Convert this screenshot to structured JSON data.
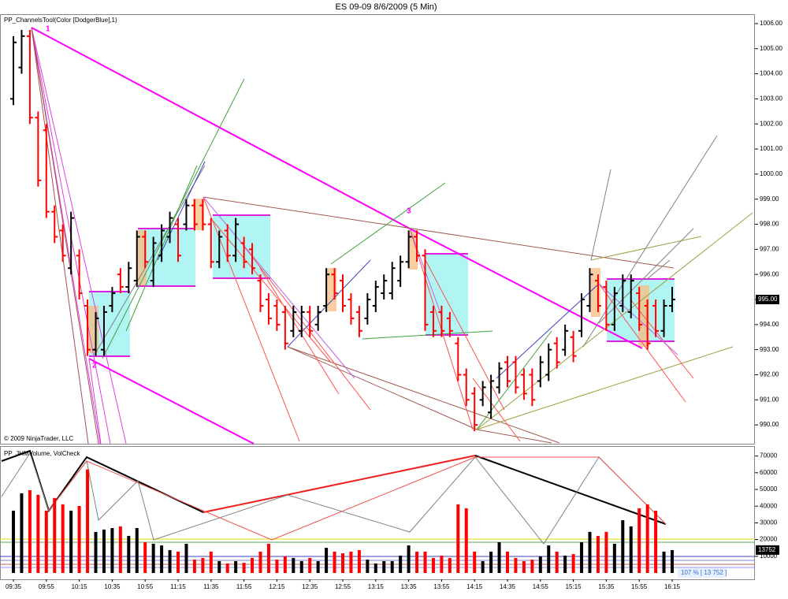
{
  "chart_data": [
    {
      "type": "ohlc",
      "title": "ES 09-09  8/6/2009 (5 Min)",
      "indicator_label": "PP_ChannelsTool(Color [DodgerBlue],1)",
      "copyright": "© 2009 NinjaTrader, LLC",
      "pivot_labels": [
        "1",
        "2",
        "3"
      ],
      "colors": {
        "up": "#000000",
        "down": "#ff0000"
      },
      "ylim": [
        989.25,
        1006.375
      ],
      "yticks": [
        {
          "value": 990,
          "label": "990.00"
        },
        {
          "value": 991,
          "label": "991.00"
        },
        {
          "value": 992,
          "label": "992.00"
        },
        {
          "value": 993,
          "label": "993.00"
        },
        {
          "value": 994,
          "label": "994.00"
        },
        {
          "value": 995,
          "label": "995.00"
        },
        {
          "value": 996,
          "label": "996.00"
        },
        {
          "value": 997,
          "label": "997.00"
        },
        {
          "value": 998,
          "label": "998.00"
        },
        {
          "value": 999,
          "label": "999.00"
        },
        {
          "value": 1000,
          "label": "1000.00"
        },
        {
          "value": 1001,
          "label": "1001.00"
        },
        {
          "value": 1002,
          "label": "1002.00"
        },
        {
          "value": 1003,
          "label": "1003.00"
        },
        {
          "value": 1004,
          "label": "1004.00"
        },
        {
          "value": 1005,
          "label": "1005.00"
        },
        {
          "value": 1006,
          "label": "1006.00"
        }
      ],
      "last_value": {
        "value": 995,
        "label": "995.00"
      },
      "open": [
        1003.0,
        1004.25,
        1005.5,
        1002.25,
        1001.75,
        998.5,
        997.75,
        996.25,
        996.75,
        994.75,
        993.0,
        993.0,
        994.75,
        996.0,
        995.5,
        995.75,
        997.5,
        995.75,
        996.75,
        997.5,
        998.0,
        998.0,
        998.75,
        998.75,
        998.0,
        996.5,
        997.75,
        996.75,
        997.25,
        997.0,
        995.75,
        995.0,
        994.75,
        994.5,
        993.75,
        993.75,
        994.5,
        994.0,
        994.75,
        996.0,
        995.75,
        995.0,
        994.5,
        994.25,
        994.75,
        995.25,
        995.25,
        995.75,
        996.5,
        997.5,
        996.75,
        994.5,
        994.5,
        994.25,
        993.25,
        992.0,
        991.25,
        991.0,
        990.5,
        991.5,
        992.5,
        992.5,
        992.0,
        992.0,
        991.75,
        992.0,
        993.25,
        993.0,
        993.5,
        993.75,
        994.75,
        995.75,
        995.5,
        994.0,
        994.75,
        994.5,
        995.25,
        994.75,
        994.75,
        993.75,
        994.75
      ],
      "high": [
        1005.5,
        1005.75,
        1005.75,
        1002.5,
        1002.0,
        998.75,
        998.0,
        998.5,
        997.0,
        995.0,
        994.5,
        994.75,
        995.5,
        996.25,
        996.5,
        997.75,
        997.75,
        997.5,
        998.0,
        998.5,
        998.25,
        999.0,
        999.0,
        999.0,
        998.25,
        997.75,
        998.0,
        998.25,
        997.5,
        997.25,
        996.0,
        995.25,
        995.0,
        994.75,
        994.75,
        994.75,
        994.75,
        994.75,
        996.25,
        996.25,
        996.0,
        995.25,
        994.75,
        995.25,
        995.75,
        996.0,
        996.5,
        996.75,
        997.75,
        997.75,
        997.0,
        994.75,
        994.75,
        994.5,
        993.5,
        992.25,
        991.5,
        991.75,
        992.0,
        992.5,
        992.75,
        992.75,
        992.25,
        992.25,
        992.75,
        993.25,
        993.5,
        994.0,
        993.75,
        995.25,
        996.25,
        996.0,
        995.75,
        995.5,
        996.0,
        996.0,
        995.5,
        995.0,
        995.0,
        995.0,
        995.5
      ],
      "low": [
        1002.75,
        1004.0,
        1002.0,
        999.5,
        998.25,
        997.25,
        996.5,
        996.0,
        995.0,
        992.75,
        992.75,
        992.75,
        994.5,
        995.25,
        995.25,
        995.5,
        996.25,
        995.5,
        996.5,
        997.25,
        996.5,
        997.75,
        997.75,
        997.75,
        996.25,
        996.25,
        996.5,
        996.5,
        996.25,
        996.0,
        994.5,
        994.0,
        993.75,
        993.0,
        993.5,
        993.5,
        993.5,
        993.75,
        994.5,
        995.0,
        994.5,
        994.0,
        993.5,
        994.0,
        994.5,
        995.0,
        995.0,
        995.5,
        996.25,
        996.5,
        993.75,
        993.5,
        993.5,
        993.5,
        991.75,
        990.75,
        989.75,
        990.75,
        990.25,
        991.25,
        991.5,
        991.25,
        991.0,
        990.75,
        991.5,
        991.75,
        992.25,
        992.75,
        992.5,
        993.5,
        994.5,
        994.5,
        993.75,
        993.75,
        994.5,
        994.25,
        993.75,
        993.0,
        993.5,
        993.5,
        994.5
      ],
      "close": [
        1005.25,
        1005.5,
        1002.25,
        999.75,
        998.5,
        997.5,
        996.75,
        998.25,
        995.25,
        993.0,
        994.25,
        994.5,
        995.25,
        995.5,
        996.25,
        997.5,
        996.5,
        997.25,
        997.75,
        998.25,
        996.75,
        998.75,
        998.0,
        998.0,
        996.5,
        997.5,
        996.75,
        998.0,
        996.5,
        996.25,
        994.75,
        994.25,
        994.0,
        993.25,
        994.5,
        994.5,
        993.75,
        994.5,
        996.0,
        995.25,
        994.75,
        994.25,
        993.75,
        995.0,
        995.5,
        995.75,
        996.25,
        996.5,
        997.5,
        996.75,
        994.0,
        993.75,
        993.75,
        993.75,
        992.0,
        991.0,
        990.0,
        991.5,
        991.75,
        992.25,
        991.75,
        991.5,
        991.25,
        991.0,
        992.5,
        993.0,
        992.5,
        993.75,
        992.75,
        995.0,
        996.0,
        994.75,
        994.0,
        995.25,
        995.75,
        995.75,
        994.0,
        993.25,
        993.75,
        994.75,
        995.0
      ]
    },
    {
      "type": "bar",
      "indicator_label": "PP_JHMVolume, VolCheck",
      "colors": {
        "up": "#000000",
        "down": "#ff0000"
      },
      "note": "107 % [ 13 752 ]",
      "last_value": 13752,
      "ylim": [
        0,
        75000
      ],
      "yticks": [
        10000,
        20000,
        30000,
        40000,
        50000,
        60000,
        70000
      ],
      "categories": [
        "09:35",
        null,
        null,
        null,
        "09:55",
        null,
        null,
        null,
        "10:15",
        null,
        null,
        null,
        "10:35",
        null,
        null,
        null,
        "10:55",
        null,
        null,
        null,
        "11:15",
        null,
        null,
        null,
        "11:35",
        null,
        null,
        null,
        "11:55",
        null,
        null,
        null,
        "12:15",
        null,
        null,
        null,
        "12:35",
        null,
        null,
        null,
        "12:55",
        null,
        null,
        null,
        "13:15",
        null,
        null,
        null,
        "13:35",
        null,
        null,
        null,
        "13:55",
        null,
        null,
        null,
        "14:15",
        null,
        null,
        null,
        "14:35",
        null,
        null,
        null,
        "14:55",
        null,
        null,
        null,
        "15:15",
        null,
        null,
        null,
        "15:35",
        null,
        null,
        null,
        "15:55",
        null,
        null,
        null,
        "16:15"
      ],
      "values": [
        37300,
        47700,
        49600,
        46800,
        37300,
        44900,
        41100,
        37300,
        40100,
        62000,
        24600,
        26000,
        26900,
        27900,
        22200,
        26900,
        18400,
        17500,
        16500,
        13700,
        12800,
        17500,
        8000,
        9000,
        12800,
        7100,
        5700,
        7100,
        6100,
        9000,
        12800,
        17500,
        8000,
        9900,
        9000,
        7100,
        9000,
        7100,
        15100,
        12800,
        11800,
        12800,
        13700,
        8000,
        5700,
        7100,
        7100,
        10400,
        16500,
        12800,
        12800,
        9000,
        10400,
        9000,
        41100,
        38700,
        12800,
        7100,
        12800,
        18400,
        12800,
        9000,
        7100,
        8000,
        9900,
        16500,
        12800,
        10400,
        11300,
        18400,
        24600,
        22200,
        24600,
        17500,
        31600,
        27900,
        38700,
        41100,
        37300,
        12800,
        13700
      ]
    }
  ]
}
